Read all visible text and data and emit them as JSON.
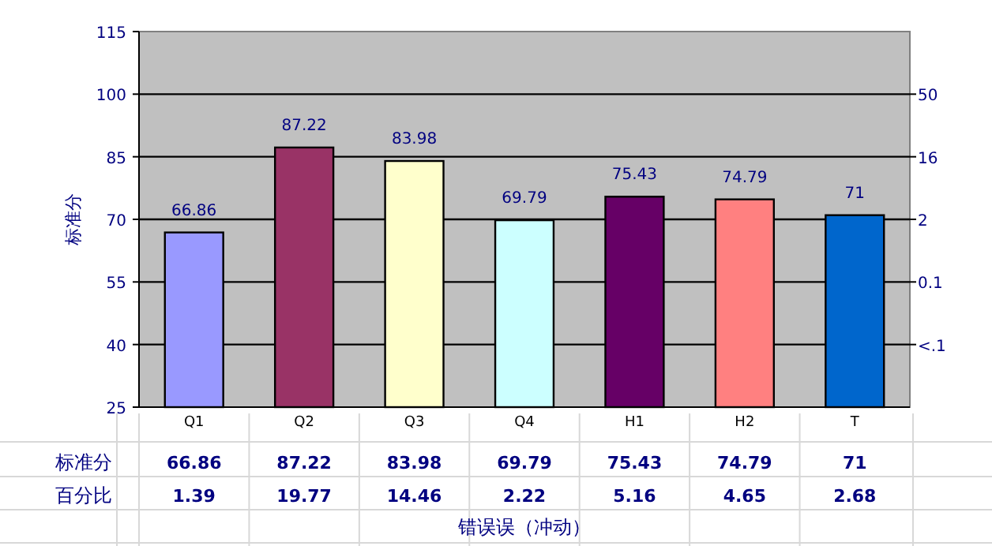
{
  "chart_data": {
    "type": "bar",
    "ylabel": "标准分",
    "xlabel": "错误误（冲动）",
    "categories": [
      "Q1",
      "Q2",
      "Q3",
      "Q4",
      "H1",
      "H2",
      "T"
    ],
    "values": [
      66.86,
      87.22,
      83.98,
      69.79,
      75.43,
      74.79,
      71
    ],
    "colors": [
      "#9999ff",
      "#993366",
      "#ffffcc",
      "#ccffff",
      "#660066",
      "#ff8080",
      "#0066cc"
    ],
    "ylim": [
      25,
      115
    ],
    "yticks": [
      25,
      40,
      55,
      70,
      85,
      100,
      115
    ],
    "value_labels": [
      "66.86",
      "87.22",
      "83.98",
      "69.79",
      "75.43",
      "74.79",
      "71"
    ],
    "grid": "y",
    "annotations": [
      "标准分",
      "百分比",
      "66.86",
      "87.22",
      "83.98",
      "69.79",
      "75.43",
      "74.79",
      "71",
      "1.39",
      "19.77",
      "14.46",
      "2.22",
      "5.16",
      "4.65",
      "2.68",
      "50",
      "16",
      "2",
      "0.1",
      "<.1"
    ]
  }
}
